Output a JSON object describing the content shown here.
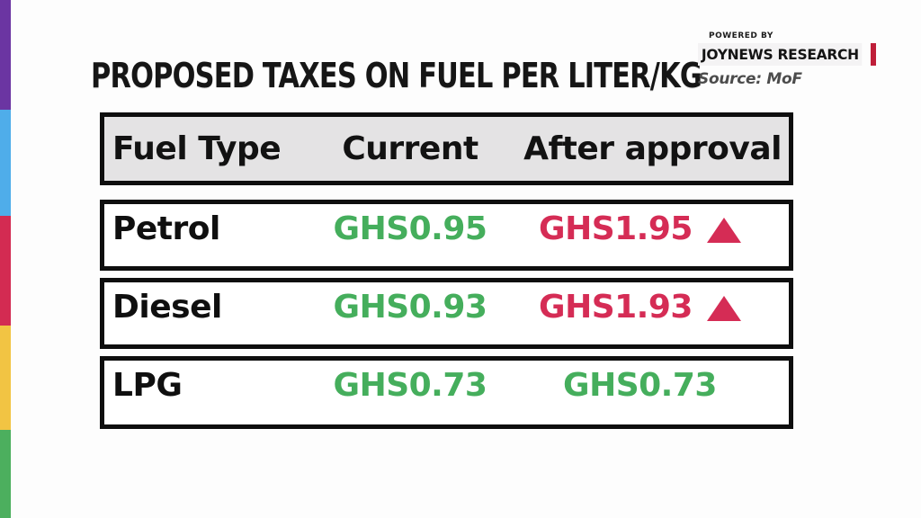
{
  "header": {
    "title": "PROPOSED TAXES ON FUEL PER LITER/KG",
    "powered_by": "POWERED BY",
    "brand": "JOYNEWS RESEARCH",
    "source": "Source: MoF"
  },
  "table": {
    "columns": [
      "Fuel Type",
      "Current",
      "After approval"
    ],
    "rows": [
      {
        "fuel": "Petrol",
        "current": "GHS0.95",
        "after": "GHS1.95",
        "change": "increase"
      },
      {
        "fuel": "Diesel",
        "current": "GHS0.93",
        "after": "GHS1.93",
        "change": "increase"
      },
      {
        "fuel": "LPG",
        "current": "GHS0.73",
        "after": "GHS0.73",
        "change": "none"
      }
    ]
  },
  "colors": {
    "current_green": "#45ae5c",
    "increase_red": "#d52c55",
    "brand_bar_red": "#bf1f39",
    "accent_purple": "#6b35a2",
    "accent_blue": "#4fadea",
    "accent_red": "#d32b52",
    "accent_yellow": "#f2c443",
    "accent_green": "#4caf5e"
  },
  "chart_data": {
    "type": "table",
    "title": "PROPOSED TAXES ON FUEL PER LITER/KG",
    "columns": [
      "Fuel Type",
      "Current",
      "After approval"
    ],
    "rows": [
      [
        "Petrol",
        "GHS0.95",
        "GHS1.95"
      ],
      [
        "Diesel",
        "GHS0.93",
        "GHS1.93"
      ],
      [
        "LPG",
        "GHS0.73",
        "GHS0.73"
      ]
    ],
    "numeric_values": {
      "Petrol": {
        "current": 0.95,
        "after_approval": 1.95
      },
      "Diesel": {
        "current": 0.93,
        "after_approval": 1.93
      },
      "LPG": {
        "current": 0.73,
        "after_approval": 0.73
      }
    },
    "currency": "GHS",
    "source": "MoF",
    "annotations": "Red up-triangle markers on Petrol and Diesel 'After approval' values indicate an increase"
  }
}
